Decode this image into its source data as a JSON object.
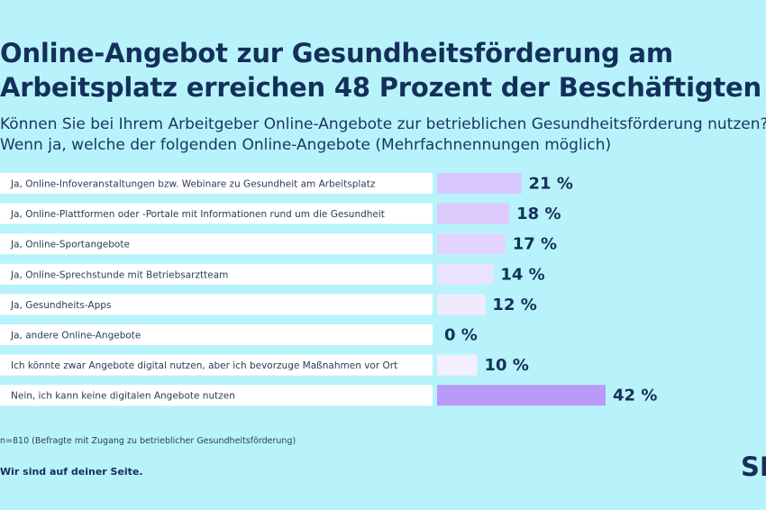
{
  "header": {
    "title_line1": "Online-Angebot zur Gesundheitsförderung am",
    "title_line2": "Arbeitsplatz erreichen 48 Prozent der Beschäftigten",
    "subtitle_line1": "Können Sie bei Ihrem Arbeitgeber Online-Angebote zur betrieblichen Gesundheitsförderung nutzen?",
    "subtitle_line2": "Wenn ja, welche der folgenden Online-Angebote (Mehrfachnennungen möglich)"
  },
  "chart_data": {
    "type": "bar",
    "orientation": "horizontal",
    "categories": [
      "Ja, Online-Infoveranstaltungen bzw. Webinare zu Gesundheit am Arbeitsplatz",
      "Ja, Online-Plattformen oder -Portale mit Informationen rund um die Gesundheit",
      "Ja, Online-Sportangebote",
      "Ja, Online-Sprechstunde mit Betriebsarztteam",
      "Ja, Gesundheits-Apps",
      "Ja, andere Online-Angebote",
      "Ich könnte zwar Angebote digital nutzen, aber ich bevorzuge Maßnahmen vor Ort",
      "Nein, ich kann keine digitalen Angebote nutzen"
    ],
    "values": [
      21,
      18,
      17,
      14,
      12,
      0,
      10,
      42
    ],
    "value_labels": [
      "21 %",
      "18 %",
      "17 %",
      "14 %",
      "12 %",
      "0 %",
      "10 %",
      "42 %"
    ],
    "unit": "%",
    "bar_colors": [
      "#d8c6fd",
      "#ddcbfd",
      "#e2d4fe",
      "#ebe2fe",
      "#f1eafe",
      "#f4efff",
      "#f4efff",
      "#b99af8"
    ],
    "grid": false,
    "legend": "none"
  },
  "footer": {
    "footnote": "n=810 (Befragte mit Zugang zu betrieblicher Gesundheitsförderung)",
    "slogan": "Wir sind auf deiner Seite.",
    "logo_text": "SBK"
  },
  "colors": {
    "background": "#b8f3fb",
    "label_box": "#ffffff",
    "text": "#14305a"
  }
}
